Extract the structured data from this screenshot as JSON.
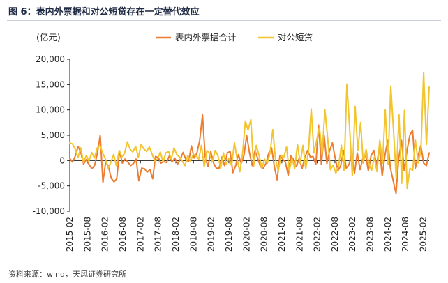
{
  "figure_title": "图 6：表内外票据和对公短贷存在一定替代效应",
  "source_note": "资料来源：wind，天风证券研究所",
  "chart_data": {
    "type": "line",
    "title": "",
    "ylabel": "(亿元)",
    "xlabel": "",
    "ylim": [
      -10000,
      20000
    ],
    "yticks": [
      "-10,000",
      "-5,000",
      "0",
      "5,000",
      "10,000",
      "15,000",
      "20,000"
    ],
    "ytick_values": [
      -10000,
      -5000,
      0,
      5000,
      10000,
      15000,
      20000
    ],
    "xticks": [
      "2015-02",
      "2015-08",
      "2016-02",
      "2016-08",
      "2017-02",
      "2017-08",
      "2018-02",
      "2018-08",
      "2019-02",
      "2019-08",
      "2020-02",
      "2020-08",
      "2021-02",
      "2021-08",
      "2022-02",
      "2022-08",
      "2023-02",
      "2023-08",
      "2024-02",
      "2024-08",
      "2025-02"
    ],
    "x_start": "2015-02",
    "x_end": "2025-04",
    "grid": false,
    "legend_position": "top",
    "series": [
      {
        "name": "表内外票据合计",
        "color": "#ED7D31",
        "values": [
          400,
          -300,
          900,
          2800,
          1600,
          -700,
          200,
          -800,
          -1600,
          -900,
          1500,
          5000,
          -4300,
          -200,
          -1200,
          -3500,
          -4200,
          -3600,
          1900,
          -500,
          300,
          -300,
          -1000,
          -600,
          300,
          -4000,
          -1500,
          -1600,
          -2300,
          -1800,
          -3600,
          800,
          600,
          -500,
          -200,
          -400,
          900,
          -300,
          500,
          -700,
          300,
          1600,
          200,
          -200,
          2900,
          500,
          1500,
          4000,
          9000,
          600,
          -1200,
          1800,
          -500,
          -1500,
          -1500,
          700,
          -1000,
          1500,
          1800,
          -2400,
          -1000,
          1200,
          -600,
          1000,
          5000,
          1500,
          -1000,
          2000,
          400,
          -1200,
          -1500,
          -500,
          1500,
          2500,
          -1200,
          -3800,
          1000,
          300,
          -300,
          -2900,
          900,
          200,
          -1200,
          500,
          -1600,
          500,
          2000,
          700,
          800,
          -800,
          7000,
          -700,
          5000,
          -600,
          2000,
          3500,
          500,
          -2000,
          -1000,
          2000,
          -1500,
          -800,
          1500,
          -2500,
          1500,
          -1800,
          500,
          1200,
          -2000,
          1000,
          2000,
          -1000,
          2700,
          -3000,
          1000,
          4000,
          -1500,
          -4000,
          -6500,
          500,
          4000,
          -2000,
          2000,
          5000,
          6000,
          -1500,
          1000,
          3000,
          -500,
          -1000,
          1500
        ]
      },
      {
        "name": "对公短贷",
        "color": "#F2C42E",
        "values": [
          3500,
          3300,
          2200,
          600,
          2500,
          -400,
          1000,
          -100,
          1600,
          500,
          2500,
          3000,
          1500,
          300,
          -1500,
          -300,
          1200,
          -1000,
          2000,
          700,
          1500,
          3700,
          2200,
          1700,
          2800,
          600,
          3200,
          2300,
          1800,
          2700,
          1300,
          -100,
          300,
          1700,
          -300,
          1500,
          1800,
          300,
          2500,
          1200,
          700,
          -100,
          -1000,
          1000,
          -100,
          1200,
          1000,
          300,
          3000,
          -1200,
          2000,
          1300,
          -200,
          2000,
          1000,
          -1500,
          1500,
          -800,
          400,
          -1000,
          3500,
          300,
          -2200,
          1500,
          7800,
          6000,
          8100,
          -1200,
          3000,
          1000,
          -1500,
          300,
          -500,
          1500,
          6100,
          200,
          -2000,
          1000,
          600,
          2700,
          -2000,
          400,
          -1500,
          3200,
          -500,
          3000,
          -1600,
          1800,
          10200,
          1500,
          4000,
          6500,
          1500,
          10000,
          4500,
          -1800,
          -900,
          -2500,
          -1000,
          3000,
          -2000,
          15100,
          6500,
          -3000,
          10700,
          2000,
          7500,
          -500,
          2200,
          -500,
          -2000,
          700,
          -2200,
          4000,
          -500,
          10000,
          -800,
          14700,
          6000,
          -3500,
          9000,
          -4500,
          9900,
          -5500,
          -1500,
          -2000,
          4000,
          -500,
          2000,
          17400,
          3200,
          14500
        ]
      }
    ]
  }
}
